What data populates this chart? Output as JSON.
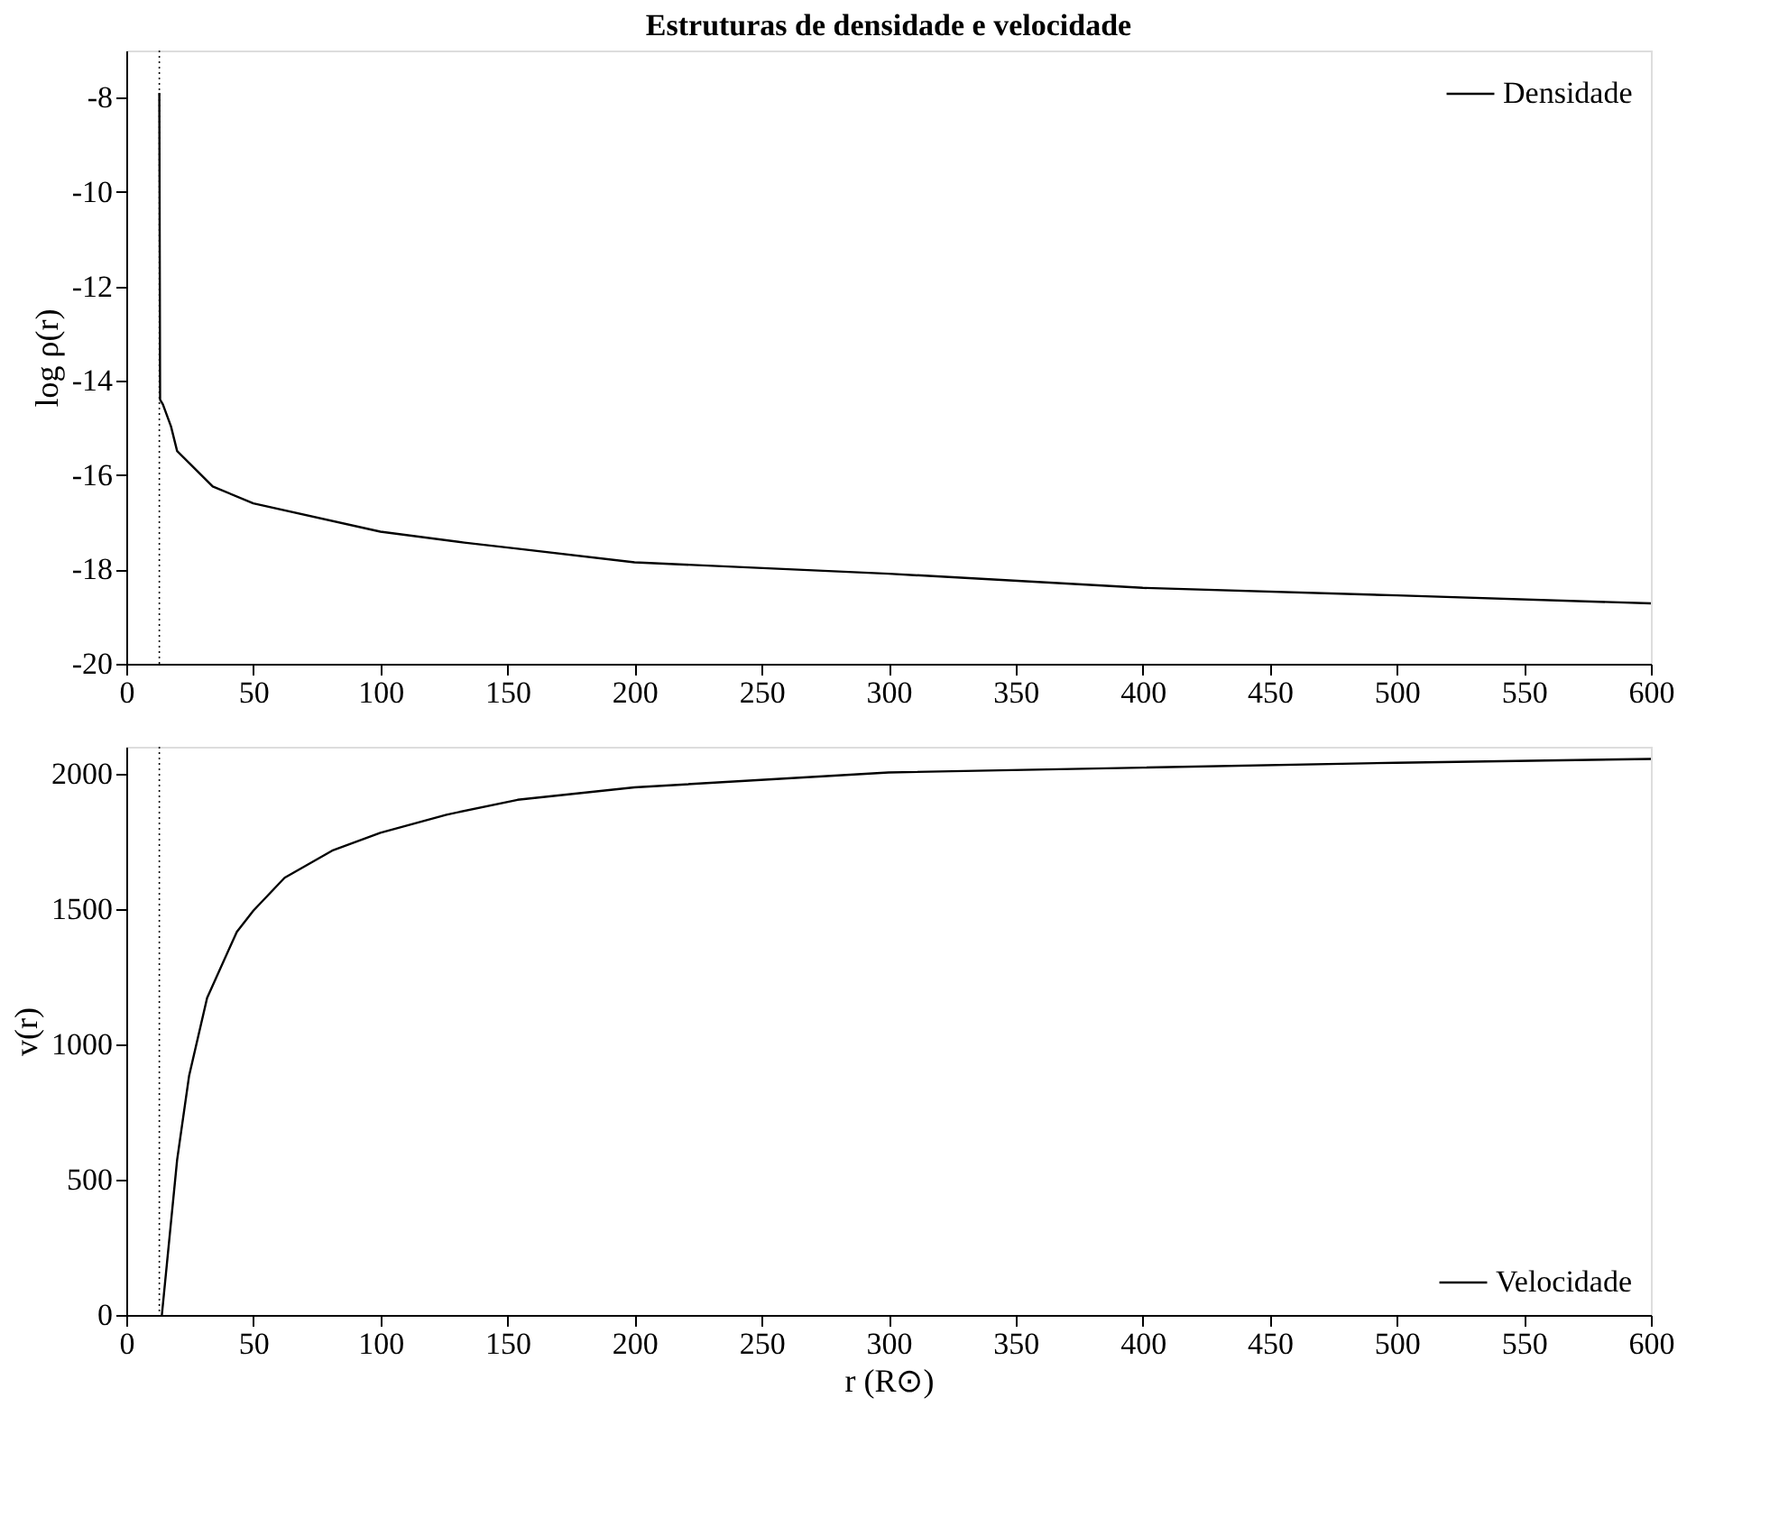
{
  "chart_data": [
    {
      "type": "line",
      "title": "Estruturas de densidade e velocidade",
      "ylabel": "log ρ(r)",
      "series": [
        {
          "name": "Densidade",
          "color": "#000000",
          "x": [
            13,
            13.3,
            14.4,
            17.6,
            20,
            34,
            50,
            100,
            133,
            154,
            200,
            300,
            400,
            500,
            600
          ],
          "values": [
            -7.9,
            -14.4,
            -14.5,
            -14.97,
            -15.49,
            -16.24,
            -16.6,
            -17.2,
            -17.43,
            -17.56,
            -17.85,
            -18.09,
            -18.39,
            -18.55,
            -18.72
          ]
        }
      ],
      "xlim": [
        0,
        600
      ],
      "xticks": [
        0,
        50,
        100,
        150,
        200,
        250,
        300,
        350,
        400,
        450,
        500,
        550,
        600
      ],
      "ylim": [
        -20,
        -7
      ],
      "yticks": [
        -20,
        -18,
        -16,
        -14,
        -12,
        -10,
        -8
      ],
      "ref_lines": [
        {
          "axis": "x",
          "value": 13,
          "line_style": "dotted",
          "color": "#000000"
        }
      ],
      "legend": "top right",
      "grid": false,
      "line_style": "solid",
      "marker": "none"
    },
    {
      "type": "line",
      "xlabel": "r (R⊙)",
      "ylabel": "v(r)",
      "series": [
        {
          "name": "Velocidade",
          "color": "#000000",
          "x": [
            14,
            20,
            24.7,
            31.8,
            43.5,
            50,
            62.3,
            81,
            100,
            126,
            154,
            200,
            300,
            400,
            500,
            600
          ],
          "values": [
            0,
            573,
            883,
            1172,
            1416,
            1494,
            1616,
            1716,
            1782,
            1849,
            1904,
            1950,
            2005,
            2023,
            2041,
            2055
          ]
        }
      ],
      "xlim": [
        0,
        600
      ],
      "xticks": [
        0,
        50,
        100,
        150,
        200,
        250,
        300,
        350,
        400,
        450,
        500,
        550,
        600
      ],
      "ylim": [
        0,
        2100
      ],
      "yticks": [
        0,
        500,
        1000,
        1500,
        2000
      ],
      "ref_lines": [
        {
          "axis": "x",
          "value": 13,
          "line_style": "dotted",
          "color": "#000000"
        }
      ],
      "legend": "bottom right",
      "grid": false,
      "line_style": "solid",
      "marker": "none"
    }
  ]
}
